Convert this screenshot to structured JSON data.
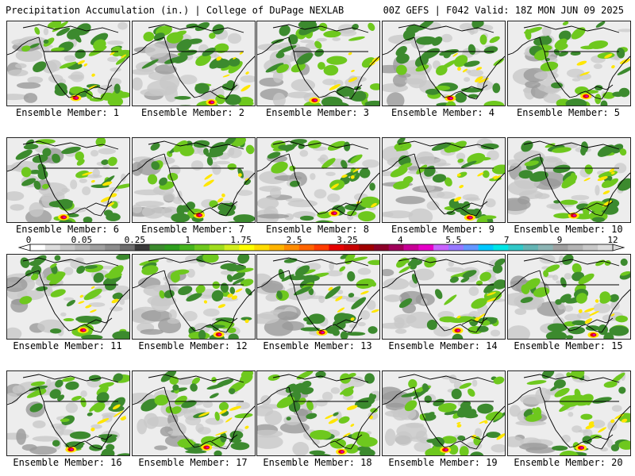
{
  "header": {
    "title": "Precipitation Accumulation (in.) | College of DuPage NEXLAB",
    "run_info": "00Z GEFS | F042 Valid: 18Z MON JUN 09 2025"
  },
  "legend": {
    "ticks": [
      "0",
      "0.05",
      "0.25",
      "1",
      "1.75",
      "2.5",
      "3.25",
      "4",
      "5.5",
      "7",
      "9",
      "12"
    ],
    "colors": [
      "#ffffff",
      "#dcdcdc",
      "#c8c8c8",
      "#b4b4b4",
      "#a0a0a0",
      "#8c8c8c",
      "#6e6e6e",
      "#3a3a3a",
      "#3c8a2e",
      "#2e9e1e",
      "#46b41e",
      "#6ec81e",
      "#a0dc1e",
      "#d2ee1e",
      "#ffff00",
      "#ffdc00",
      "#ffb400",
      "#ff8c00",
      "#ff6400",
      "#ff3c00",
      "#e60000",
      "#c80000",
      "#a00000",
      "#8c0028",
      "#a0005a",
      "#c80096",
      "#e600c8",
      "#c864ff",
      "#9678ff",
      "#6496ff",
      "#00c8ff",
      "#00e6e6",
      "#32c8c8",
      "#64b4b4",
      "#8cb4b4",
      "#a0a0a0",
      "#b4b4b4",
      "#c8c8c8",
      "#dcdcdc"
    ]
  },
  "members": [
    "Ensemble Member: 1",
    "Ensemble Member: 2",
    "Ensemble Member: 3",
    "Ensemble Member: 4",
    "Ensemble Member: 5",
    "Ensemble Member: 6",
    "Ensemble Member: 7",
    "Ensemble Member: 8",
    "Ensemble Member: 9",
    "Ensemble Member: 10",
    "Ensemble Member: 11",
    "Ensemble Member: 12",
    "Ensemble Member: 13",
    "Ensemble Member: 14",
    "Ensemble Member: 15",
    "Ensemble Member: 16",
    "Ensemble Member: 17",
    "Ensemble Member: 18",
    "Ensemble Member: 19",
    "Ensemble Member: 20"
  ],
  "map_colors": {
    "background": "#ededed",
    "light_gray": "#c8c8c8",
    "mid_gray": "#9a9a9a",
    "green": "#3c8a2e",
    "bright_green": "#6ec81e",
    "yellow": "#ffe600",
    "red": "#e60000",
    "magenta": "#c800c8",
    "border": "#000000"
  }
}
